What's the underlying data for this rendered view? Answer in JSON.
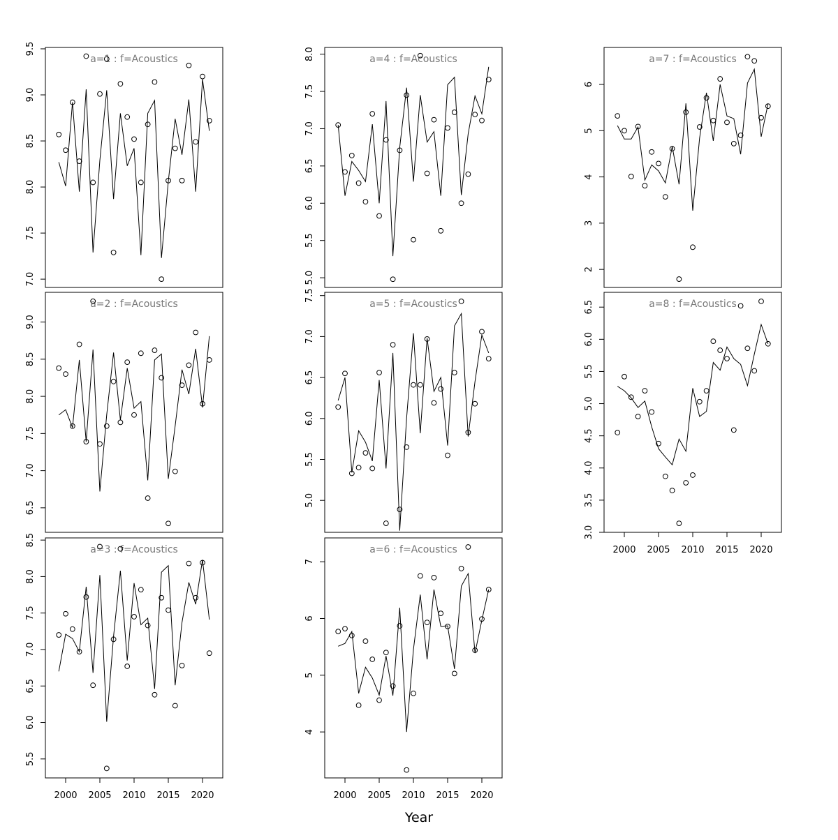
{
  "xlabel": "Year",
  "x": [
    1999,
    2000,
    2001,
    2002,
    2003,
    2004,
    2005,
    2006,
    2007,
    2008,
    2009,
    2010,
    2011,
    2012,
    2013,
    2014,
    2015,
    2016,
    2017,
    2018,
    2019,
    2020,
    2021
  ],
  "xlim": [
    1997.04,
    2022.96
  ],
  "chart_data": [
    {
      "type": "scatter",
      "title": "a=1  :  f=Acoustics",
      "ylim": [
        6.91,
        9.515
      ],
      "yticks": [
        {
          "value": 7,
          "label": "7.0"
        },
        7.5,
        {
          "value": 8,
          "label": "8.0"
        },
        8.5,
        {
          "value": 9,
          "label": "9.0"
        },
        9.5
      ],
      "series": [
        {
          "style": "points",
          "values": [
            8.57,
            8.4,
            8.92,
            8.28,
            9.42,
            8.05,
            9.01,
            9.39,
            7.29,
            9.12,
            8.76,
            8.52,
            8.05,
            8.68,
            9.14,
            7.0,
            8.07,
            8.42,
            8.07,
            9.32,
            8.49,
            9.2,
            8.72
          ]
        },
        {
          "style": "line",
          "values": [
            8.27,
            8.01,
            8.92,
            7.95,
            9.06,
            7.29,
            8.29,
            9.05,
            7.87,
            8.8,
            8.23,
            8.42,
            7.26,
            8.8,
            8.94,
            7.23,
            8.06,
            8.74,
            8.35,
            8.95,
            7.95,
            9.17,
            8.61
          ]
        }
      ]
    },
    {
      "type": "scatter",
      "title": "a=2  :  f=Acoustics",
      "ylim": [
        6.17,
        9.4
      ],
      "yticks": [
        6.5,
        {
          "value": 7,
          "label": "7.0"
        },
        7.5,
        {
          "value": 8,
          "label": "8.0"
        },
        8.5,
        {
          "value": 9,
          "label": "9.0"
        }
      ],
      "series": [
        {
          "style": "points",
          "values": [
            8.38,
            8.3,
            7.6,
            8.7,
            7.39,
            9.28,
            7.36,
            7.6,
            8.2,
            7.65,
            8.46,
            7.75,
            8.58,
            6.63,
            8.62,
            8.25,
            6.29,
            6.99,
            8.15,
            8.42,
            8.86,
            7.9,
            8.49
          ]
        },
        {
          "style": "line",
          "values": [
            7.75,
            7.82,
            7.58,
            8.49,
            7.39,
            8.63,
            6.72,
            7.75,
            8.59,
            7.68,
            8.38,
            7.84,
            7.93,
            6.87,
            8.49,
            8.57,
            6.89,
            7.6,
            8.36,
            8.03,
            8.64,
            7.85,
            8.81
          ]
        }
      ]
    },
    {
      "type": "scatter",
      "title": "a=3  :  f=Acoustics",
      "ylim": [
        5.24,
        8.53
      ],
      "xticks": [
        2000,
        2005,
        2010,
        2015,
        2020
      ],
      "yticks": [
        5.5,
        {
          "value": 6,
          "label": "6.0"
        },
        6.5,
        {
          "value": 7,
          "label": "7.0"
        },
        7.5,
        {
          "value": 8,
          "label": "8.0"
        },
        8.5
      ],
      "series": [
        {
          "style": "points",
          "values": [
            7.2,
            7.49,
            7.28,
            6.97,
            7.72,
            6.51,
            8.41,
            5.37,
            7.14,
            8.38,
            6.77,
            7.45,
            7.82,
            7.33,
            6.38,
            7.71,
            7.54,
            6.23,
            6.78,
            8.18,
            7.71,
            8.19,
            6.95
          ]
        },
        {
          "style": "line",
          "values": [
            6.7,
            7.21,
            7.15,
            6.97,
            7.86,
            6.68,
            8.02,
            6.01,
            7.18,
            8.08,
            6.85,
            7.91,
            7.34,
            7.43,
            6.46,
            8.06,
            8.15,
            6.51,
            7.37,
            7.92,
            7.62,
            8.23,
            7.41
          ]
        }
      ]
    },
    {
      "type": "scatter",
      "title": "a=4  :  f=Acoustics",
      "ylim": [
        4.87,
        8.09
      ],
      "yticks": [
        {
          "value": 5,
          "label": "5.0"
        },
        5.5,
        {
          "value": 6,
          "label": "6.0"
        },
        6.5,
        {
          "value": 7,
          "label": "7.0"
        },
        7.5,
        {
          "value": 8,
          "label": "8.0"
        }
      ],
      "series": [
        {
          "style": "points",
          "values": [
            7.05,
            6.42,
            6.64,
            6.27,
            6.02,
            7.2,
            5.83,
            6.85,
            4.98,
            6.71,
            7.45,
            5.51,
            7.98,
            6.4,
            7.12,
            5.63,
            7.01,
            7.22,
            6.0,
            6.39,
            7.19,
            7.11,
            7.66
          ]
        },
        {
          "style": "line",
          "values": [
            7.05,
            6.1,
            6.56,
            6.44,
            6.29,
            7.06,
            6.0,
            7.37,
            5.29,
            6.75,
            7.55,
            6.29,
            7.45,
            6.82,
            6.96,
            6.1,
            7.59,
            7.69,
            6.11,
            6.93,
            7.44,
            7.2,
            7.83
          ]
        }
      ]
    },
    {
      "type": "scatter",
      "title": "a=5  :  f=Acoustics",
      "ylim": [
        4.61,
        7.54
      ],
      "yticks": [
        {
          "value": 5,
          "label": "5.0"
        },
        5.5,
        {
          "value": 6,
          "label": "6.0"
        },
        6.5,
        {
          "value": 7,
          "label": "7.0"
        },
        7.5
      ],
      "series": [
        {
          "style": "points",
          "values": [
            6.14,
            6.55,
            5.33,
            5.4,
            5.58,
            5.39,
            6.56,
            4.72,
            6.9,
            4.89,
            5.65,
            6.41,
            6.41,
            6.97,
            6.19,
            6.36,
            5.55,
            6.56,
            7.43,
            5.83,
            6.18,
            7.06,
            6.73
          ]
        },
        {
          "style": "line",
          "values": [
            6.22,
            6.5,
            5.34,
            5.85,
            5.71,
            5.48,
            6.47,
            5.39,
            6.8,
            4.63,
            6.0,
            7.04,
            5.82,
            6.98,
            6.33,
            6.5,
            5.67,
            7.13,
            7.28,
            5.78,
            6.45,
            7.02,
            6.8
          ]
        }
      ]
    },
    {
      "type": "scatter",
      "title": "a=6  :  f=Acoustics",
      "ylim": [
        3.19,
        7.42
      ],
      "xticks": [
        2000,
        2005,
        2010,
        2015,
        2020
      ],
      "yticks": [
        4,
        5,
        6,
        7
      ],
      "series": [
        {
          "style": "points",
          "values": [
            5.77,
            5.82,
            5.7,
            4.47,
            5.6,
            5.28,
            4.56,
            5.4,
            4.81,
            5.87,
            3.33,
            4.68,
            6.75,
            5.93,
            6.72,
            6.09,
            5.86,
            5.03,
            6.88,
            7.26,
            5.44,
            5.99,
            6.51
          ]
        },
        {
          "style": "line",
          "values": [
            5.51,
            5.56,
            5.77,
            4.68,
            5.14,
            4.95,
            4.65,
            5.34,
            4.64,
            6.19,
            4.0,
            5.45,
            6.42,
            5.28,
            6.51,
            5.86,
            5.87,
            5.11,
            6.57,
            6.79,
            5.39,
            5.97,
            6.51
          ]
        }
      ]
    },
    {
      "type": "scatter",
      "title": "a=7  :  f=Acoustics",
      "ylim": [
        1.61,
        6.8
      ],
      "yticks": [
        2,
        3,
        4,
        5,
        6
      ],
      "series": [
        {
          "style": "points",
          "values": [
            5.32,
            5.0,
            4.01,
            5.09,
            3.81,
            4.54,
            4.29,
            3.57,
            4.61,
            1.79,
            5.4,
            2.48,
            5.08,
            5.71,
            5.22,
            6.12,
            5.18,
            4.72,
            4.9,
            6.6,
            6.51,
            5.28,
            5.53
          ]
        },
        {
          "style": "line",
          "values": [
            5.11,
            4.82,
            4.82,
            5.08,
            3.93,
            4.26,
            4.13,
            3.87,
            4.66,
            3.84,
            5.59,
            3.27,
            4.84,
            5.82,
            4.78,
            6.0,
            5.32,
            5.26,
            4.49,
            6.03,
            6.33,
            4.87,
            5.58
          ]
        }
      ]
    },
    {
      "type": "scatter",
      "title": "a=8  :  f=Acoustics",
      "ylim": [
        3.0,
        6.73
      ],
      "xticks": [
        2000,
        2005,
        2010,
        2015,
        2020
      ],
      "yticks": [
        {
          "value": 3,
          "label": "3.0"
        },
        3.5,
        {
          "value": 4,
          "label": "4.0"
        },
        4.5,
        {
          "value": 5,
          "label": "5.0"
        },
        5.5,
        {
          "value": 6,
          "label": "6.0"
        },
        6.5
      ],
      "series": [
        {
          "style": "points",
          "values": [
            4.55,
            5.42,
            5.1,
            4.8,
            5.2,
            4.87,
            4.38,
            3.87,
            3.65,
            3.14,
            3.77,
            3.89,
            5.03,
            5.2,
            5.97,
            5.83,
            5.7,
            4.59,
            6.52,
            5.86,
            5.51,
            6.59,
            5.93
          ]
        },
        {
          "style": "line",
          "values": [
            5.27,
            5.2,
            5.09,
            4.94,
            5.04,
            4.64,
            4.3,
            4.17,
            4.05,
            4.45,
            4.26,
            5.24,
            4.8,
            4.88,
            5.64,
            5.52,
            5.88,
            5.7,
            5.61,
            5.28,
            5.77,
            6.23,
            5.93
          ]
        }
      ]
    }
  ]
}
